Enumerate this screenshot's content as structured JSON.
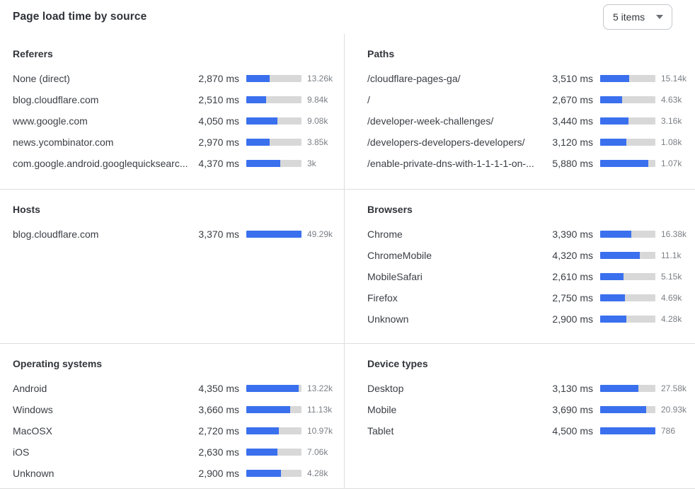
{
  "header": {
    "title": "Page load time by source",
    "items_dropdown_label": "5 items"
  },
  "colors": {
    "bar_fill": "#3A70EE",
    "bar_track": "#D8D8D8",
    "divider": "#DCDEE1"
  },
  "sections": [
    {
      "panels": [
        {
          "title": "Referers",
          "rows": [
            {
              "label": "None (direct)",
              "ms": "2,870 ms",
              "count": "13.26k",
              "bar_pct": 42
            },
            {
              "label": "blog.cloudflare.com",
              "ms": "2,510 ms",
              "count": "9.84k",
              "bar_pct": 36
            },
            {
              "label": "www.google.com",
              "ms": "4,050 ms",
              "count": "9.08k",
              "bar_pct": 56
            },
            {
              "label": "news.ycombinator.com",
              "ms": "2,970 ms",
              "count": "3.85k",
              "bar_pct": 42
            },
            {
              "label": "com.google.android.googlequicksearc...",
              "ms": "4,370 ms",
              "count": "3k",
              "bar_pct": 61
            }
          ]
        },
        {
          "title": "Paths",
          "rows": [
            {
              "label": "/cloudflare-pages-ga/",
              "ms": "3,510 ms",
              "count": "15.14k",
              "bar_pct": 53
            },
            {
              "label": "/",
              "ms": "2,670 ms",
              "count": "4.63k",
              "bar_pct": 40
            },
            {
              "label": "/developer-week-challenges/",
              "ms": "3,440 ms",
              "count": "3.16k",
              "bar_pct": 51
            },
            {
              "label": "/developers-developers-developers/",
              "ms": "3,120 ms",
              "count": "1.08k",
              "bar_pct": 47
            },
            {
              "label": "/enable-private-dns-with-1-1-1-1-on-...",
              "ms": "5,880 ms",
              "count": "1.07k",
              "bar_pct": 87
            }
          ]
        }
      ]
    },
    {
      "panels": [
        {
          "title": "Hosts",
          "rows": [
            {
              "label": "blog.cloudflare.com",
              "ms": "3,370 ms",
              "count": "49.29k",
              "bar_pct": 100
            }
          ]
        },
        {
          "title": "Browsers",
          "rows": [
            {
              "label": "Chrome",
              "ms": "3,390 ms",
              "count": "16.38k",
              "bar_pct": 57
            },
            {
              "label": "ChromeMobile",
              "ms": "4,320 ms",
              "count": "11.1k",
              "bar_pct": 72
            },
            {
              "label": "MobileSafari",
              "ms": "2,610 ms",
              "count": "5.15k",
              "bar_pct": 42
            },
            {
              "label": "Firefox",
              "ms": "2,750 ms",
              "count": "4.69k",
              "bar_pct": 45
            },
            {
              "label": "Unknown",
              "ms": "2,900 ms",
              "count": "4.28k",
              "bar_pct": 48
            }
          ]
        }
      ]
    },
    {
      "panels": [
        {
          "title": "Operating systems",
          "rows": [
            {
              "label": "Android",
              "ms": "4,350 ms",
              "count": "13.22k",
              "bar_pct": 95
            },
            {
              "label": "Windows",
              "ms": "3,660 ms",
              "count": "11.13k",
              "bar_pct": 79
            },
            {
              "label": "MacOSX",
              "ms": "2,720 ms",
              "count": "10.97k",
              "bar_pct": 59
            },
            {
              "label": "iOS",
              "ms": "2,630 ms",
              "count": "7.06k",
              "bar_pct": 56
            },
            {
              "label": "Unknown",
              "ms": "2,900 ms",
              "count": "4.28k",
              "bar_pct": 63
            }
          ]
        },
        {
          "title": "Device types",
          "rows": [
            {
              "label": "Desktop",
              "ms": "3,130 ms",
              "count": "27.58k",
              "bar_pct": 69
            },
            {
              "label": "Mobile",
              "ms": "3,690 ms",
              "count": "20.93k",
              "bar_pct": 83
            },
            {
              "label": "Tablet",
              "ms": "4,500 ms",
              "count": "786",
              "bar_pct": 100
            }
          ]
        }
      ]
    }
  ]
}
